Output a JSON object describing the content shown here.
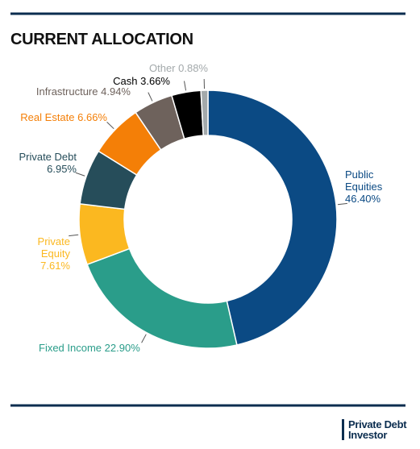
{
  "chart_data": {
    "type": "pie",
    "title": "CURRENT ALLOCATION",
    "categories": [
      "Public Equities",
      "Fixed Income",
      "Private Equity",
      "Private Debt",
      "Real Estate",
      "Infrastructure",
      "Cash",
      "Other"
    ],
    "values": [
      46.4,
      22.9,
      7.61,
      6.95,
      6.66,
      4.94,
      3.66,
      0.88
    ],
    "value_labels": [
      "46.40%",
      "22.90%",
      "7.61%",
      "6.95%",
      "6.66%",
      "4.94%",
      "3.66%",
      "0.88%"
    ],
    "colors": [
      "#0b4a84",
      "#2a9d8a",
      "#fbb820",
      "#264d5a",
      "#f47f07",
      "#6e625c",
      "#000000",
      "#a3a9ab"
    ]
  },
  "logo": {
    "line1": "Private Debt",
    "line2": "Investor"
  }
}
